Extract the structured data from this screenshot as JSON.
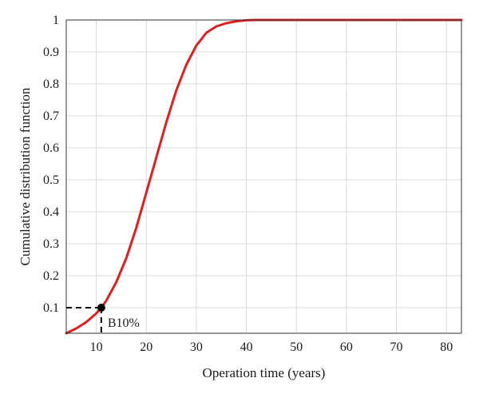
{
  "chart_data": {
    "type": "line",
    "title": "",
    "xlabel": "Operation time (years)",
    "ylabel": "Cumulative distribution function",
    "xlim": [
      4,
      83
    ],
    "ylim": [
      0.02,
      1.0
    ],
    "xticks": [
      10,
      20,
      30,
      40,
      50,
      60,
      70,
      80
    ],
    "yticks": [
      0.1,
      0.2,
      0.3,
      0.4,
      0.5,
      0.6,
      0.7,
      0.8,
      0.9,
      1
    ],
    "grid": true,
    "line_color": "#e02020",
    "series": [
      {
        "x": [
          4,
          6,
          8,
          10,
          11,
          12,
          14,
          16,
          18,
          20,
          22,
          24,
          26,
          28,
          30,
          32,
          34,
          36,
          38,
          40,
          42,
          45,
          50,
          60,
          70,
          83
        ],
        "y": [
          0.02,
          0.035,
          0.055,
          0.082,
          0.1,
          0.122,
          0.18,
          0.255,
          0.35,
          0.46,
          0.57,
          0.68,
          0.78,
          0.86,
          0.92,
          0.96,
          0.98,
          0.99,
          0.996,
          0.999,
          1.0,
          1.0,
          1.0,
          1.0,
          1.0,
          1.0
        ]
      }
    ],
    "annotations": [
      {
        "label": "B10%",
        "x": 11,
        "y": 0.1
      }
    ]
  }
}
